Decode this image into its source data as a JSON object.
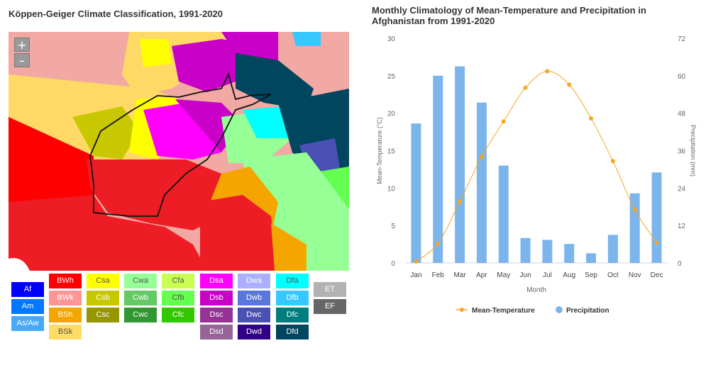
{
  "map": {
    "title": "Köppen-Geiger Climate Classification, 1991-2020",
    "zoom_in_label": "+",
    "zoom_out_label": "–"
  },
  "legend": {
    "columns": [
      [
        {
          "code": "Af",
          "color": "#0000fe",
          "text": "#ffffff"
        },
        {
          "code": "Am",
          "color": "#0078ff",
          "text": "#ffffff"
        },
        {
          "code": "As/Aw",
          "color": "#46aafa",
          "text": "#ffffff"
        }
      ],
      [
        {
          "code": "BWh",
          "color": "#ff0000",
          "text": "#ffffff"
        },
        {
          "code": "BWk",
          "color": "#ff9696",
          "text": "#ffffff"
        },
        {
          "code": "BSh",
          "color": "#f5a500",
          "text": "#ffffff"
        },
        {
          "code": "BSk",
          "color": "#ffdc64",
          "text": "#555555"
        }
      ],
      [
        {
          "code": "Csa",
          "color": "#ffff00",
          "text": "#555555"
        },
        {
          "code": "Csb",
          "color": "#c8c800",
          "text": "#ffffff"
        },
        {
          "code": "Csc",
          "color": "#969600",
          "text": "#ffffff"
        }
      ],
      [
        {
          "code": "Cwa",
          "color": "#96ff96",
          "text": "#555555"
        },
        {
          "code": "Cwb",
          "color": "#64c864",
          "text": "#ffffff"
        },
        {
          "code": "Cwc",
          "color": "#329632",
          "text": "#ffffff"
        }
      ],
      [
        {
          "code": "Cfa",
          "color": "#c8ff50",
          "text": "#555555"
        },
        {
          "code": "Cfb",
          "color": "#64ff50",
          "text": "#555555"
        },
        {
          "code": "Cfc",
          "color": "#32c800",
          "text": "#ffffff"
        }
      ],
      [
        {
          "code": "Dsa",
          "color": "#ff00ff",
          "text": "#ffffff"
        },
        {
          "code": "Dsb",
          "color": "#c800c8",
          "text": "#ffffff"
        },
        {
          "code": "Dsc",
          "color": "#963296",
          "text": "#ffffff"
        },
        {
          "code": "Dsd",
          "color": "#966496",
          "text": "#ffffff"
        }
      ],
      [
        {
          "code": "Dwa",
          "color": "#aaafff",
          "text": "#ffffff"
        },
        {
          "code": "Dwb",
          "color": "#5a78dc",
          "text": "#ffffff"
        },
        {
          "code": "Dwc",
          "color": "#4b50b4",
          "text": "#ffffff"
        },
        {
          "code": "Dwd",
          "color": "#320087",
          "text": "#ffffff"
        }
      ],
      [
        {
          "code": "Dfa",
          "color": "#00ffff",
          "text": "#555555"
        },
        {
          "code": "Dfb",
          "color": "#37c8ff",
          "text": "#ffffff"
        },
        {
          "code": "Dfc",
          "color": "#007d7d",
          "text": "#ffffff"
        },
        {
          "code": "Dfd",
          "color": "#00465f",
          "text": "#ffffff"
        }
      ],
      [
        {
          "code": "ET",
          "color": "#b2b2b2",
          "text": "#ffffff"
        },
        {
          "code": "EF",
          "color": "#666666",
          "text": "#ffffff"
        }
      ]
    ]
  },
  "chart_data": {
    "type": "bar+line",
    "title": "Monthly Climatology of Mean-Temperature and Precipitation in Afghanistan from 1991-2020",
    "xlabel": "Month",
    "ylabel_left": "Mean-Temperature (°C)",
    "ylabel_right": "Precipitation (mm)",
    "categories": [
      "Jan",
      "Feb",
      "Mar",
      "Apr",
      "May",
      "Jun",
      "Jul",
      "Aug",
      "Sep",
      "Oct",
      "Nov",
      "Dec"
    ],
    "yleft_range": [
      0,
      30
    ],
    "yleft_ticks": [
      0,
      5,
      10,
      15,
      20,
      25,
      30
    ],
    "yright_range": [
      0,
      72
    ],
    "yright_ticks": [
      0,
      12,
      24,
      36,
      48,
      60,
      72
    ],
    "series": [
      {
        "name": "Mean-Temperature",
        "type": "line",
        "axis": "left",
        "color": "#f5a623",
        "values": [
          0.2,
          2.6,
          8.2,
          14.2,
          18.9,
          23.4,
          25.6,
          23.8,
          19.3,
          13.6,
          7.1,
          2.7
        ]
      },
      {
        "name": "Precipitation",
        "type": "bar",
        "axis": "right",
        "color": "#7cb5ec",
        "values": [
          44.7,
          60.0,
          63.0,
          51.4,
          31.2,
          8.0,
          7.4,
          6.1,
          3.1,
          9.0,
          22.3,
          29.0
        ]
      }
    ],
    "legend_position": "bottom",
    "grid": false
  }
}
